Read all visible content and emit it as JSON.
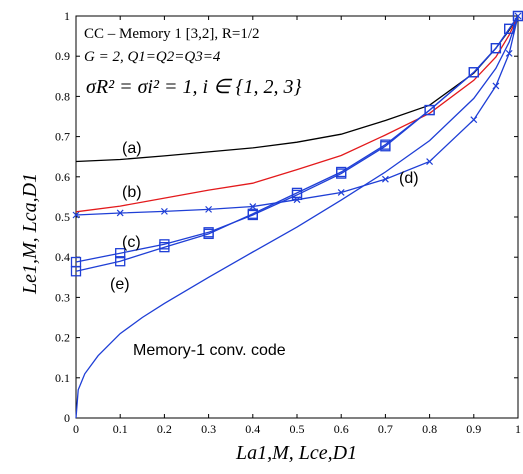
{
  "chart_data": {
    "type": "line",
    "title_lines": [
      "CC – Memory 1 [3,2], R=1/2",
      "G = 2, Q1=Q2=Q3=4",
      "σR² = σi² = 1, i ∈ {1, 2, 3}"
    ],
    "xlabel": "La1,M, Lce,D1",
    "ylabel": "Le1,M, Lca,D1",
    "xlim": [
      0,
      1
    ],
    "ylim": [
      0,
      1
    ],
    "xticks": [
      "0",
      "0.1",
      "0.2",
      "0.3",
      "0.4",
      "0.5",
      "0.6",
      "0.7",
      "0.8",
      "0.9",
      "1"
    ],
    "yticks": [
      "0",
      "0.1",
      "0.2",
      "0.3",
      "0.4",
      "0.5",
      "0.6",
      "0.7",
      "0.8",
      "0.9",
      "1"
    ],
    "grid": false,
    "series": [
      {
        "name": "(a)",
        "color": "#000000",
        "marker": "none",
        "x": [
          0,
          0.1,
          0.2,
          0.3,
          0.4,
          0.5,
          0.6,
          0.7,
          0.8,
          0.9,
          0.95,
          0.98,
          1.0
        ],
        "y": [
          0.638,
          0.643,
          0.652,
          0.662,
          0.672,
          0.686,
          0.706,
          0.74,
          0.778,
          0.858,
          0.92,
          0.965,
          1.0
        ]
      },
      {
        "name": "(b)",
        "color": "#e31a1c",
        "marker": "none",
        "x": [
          0,
          0.1,
          0.2,
          0.3,
          0.4,
          0.5,
          0.6,
          0.7,
          0.8,
          0.9,
          0.95,
          0.98,
          1.0
        ],
        "y": [
          0.513,
          0.527,
          0.547,
          0.567,
          0.584,
          0.618,
          0.653,
          0.704,
          0.758,
          0.84,
          0.898,
          0.953,
          1.0
        ]
      },
      {
        "name": "(c)",
        "color": "#1f3fd6",
        "marker": "square",
        "x": [
          0,
          0.1,
          0.2,
          0.3,
          0.4,
          0.5,
          0.6,
          0.7,
          0.8,
          0.9,
          0.95,
          0.98,
          1.0
        ],
        "y": [
          0.388,
          0.41,
          0.432,
          0.462,
          0.505,
          0.555,
          0.608,
          0.676,
          0.766,
          0.86,
          0.92,
          0.968,
          1.0
        ]
      },
      {
        "name": "(d)",
        "color": "#1f3fd6",
        "marker": "x",
        "x": [
          0,
          0.1,
          0.2,
          0.3,
          0.4,
          0.5,
          0.6,
          0.7,
          0.8,
          0.9,
          0.95,
          0.98,
          1.0
        ],
        "y": [
          0.505,
          0.51,
          0.514,
          0.519,
          0.526,
          0.543,
          0.561,
          0.594,
          0.638,
          0.742,
          0.826,
          0.907,
          1.0
        ]
      },
      {
        "name": "(e)",
        "color": "#1f3fd6",
        "marker": "square",
        "x": [
          0,
          0.1,
          0.2,
          0.3,
          0.4,
          0.5,
          0.6,
          0.7,
          0.8,
          0.9,
          0.95,
          0.98,
          1.0
        ],
        "y": [
          0.365,
          0.39,
          0.425,
          0.458,
          0.508,
          0.56,
          0.612,
          0.68,
          0.766,
          0.86,
          0.92,
          0.968,
          1.0
        ]
      },
      {
        "name": "Memory-1 conv. code",
        "color": "#1f3fd6",
        "marker": "none",
        "x": [
          0,
          0.005,
          0.02,
          0.05,
          0.1,
          0.15,
          0.2,
          0.3,
          0.4,
          0.5,
          0.6,
          0.7,
          0.8,
          0.9,
          0.95,
          0.98,
          1.0
        ],
        "y": [
          0,
          0.07,
          0.11,
          0.155,
          0.21,
          0.25,
          0.285,
          0.35,
          0.413,
          0.475,
          0.542,
          0.612,
          0.69,
          0.795,
          0.87,
          0.935,
          1.0
        ]
      }
    ],
    "square_marker_x": [
      0,
      0.1,
      0.2,
      0.3,
      0.4,
      0.5,
      0.6,
      0.7,
      0.8,
      0.9,
      0.95,
      0.98,
      1.0
    ],
    "x_marker_x": [
      0,
      0.1,
      0.2,
      0.3,
      0.4,
      0.5,
      0.6,
      0.7,
      0.8,
      0.9,
      0.95,
      0.98,
      1.0
    ],
    "annotations": [
      {
        "text": "(a)",
        "x": 0.16,
        "y": 0.67
      },
      {
        "text": "(b)",
        "x": 0.16,
        "y": 0.535
      },
      {
        "text": "(c)",
        "x": 0.16,
        "y": 0.41
      },
      {
        "text": "(d)",
        "x": 0.72,
        "y": 0.57
      },
      {
        "text": "(e)",
        "x": 0.11,
        "y": 0.33
      },
      {
        "text": "Memory-1 conv. code",
        "x": 0.17,
        "y": 0.1
      }
    ]
  }
}
